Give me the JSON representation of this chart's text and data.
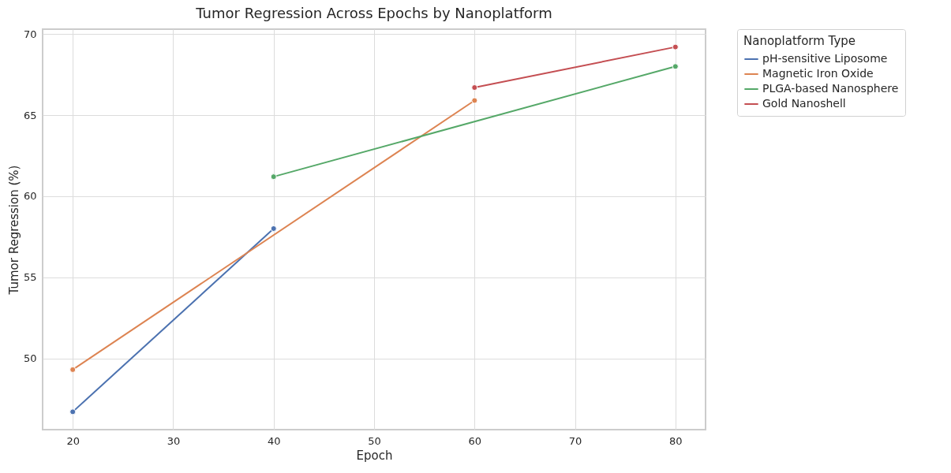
{
  "chart_data": {
    "type": "line",
    "title": "Tumor Regression Across Epochs by Nanoplatform",
    "xlabel": "Epoch",
    "ylabel": "Tumor Regression (%)",
    "legend_title": "Nanoplatform Type",
    "x": [
      20,
      40,
      60,
      80
    ],
    "series": [
      {
        "name": "pH-sensitive Liposome",
        "color": "#4c72b0",
        "values": [
          46.7,
          58.0,
          null,
          null
        ]
      },
      {
        "name": "Magnetic Iron Oxide",
        "color": "#dd8452",
        "values": [
          49.3,
          null,
          65.9,
          null
        ]
      },
      {
        "name": "PLGA-based Nanosphere",
        "color": "#55a868",
        "values": [
          null,
          61.2,
          null,
          68.0
        ]
      },
      {
        "name": "Gold Nanoshell",
        "color": "#c44e52",
        "values": [
          null,
          null,
          66.7,
          69.2
        ]
      }
    ],
    "xlim": [
      17,
      83
    ],
    "xticks": [
      20,
      30,
      40,
      50,
      60,
      70,
      80
    ],
    "ylim": [
      45.6,
      70.3
    ],
    "yticks": [
      50,
      55,
      60,
      65,
      70
    ],
    "grid": true,
    "legend": "top right",
    "marker": "circle",
    "line_style": "solid"
  }
}
